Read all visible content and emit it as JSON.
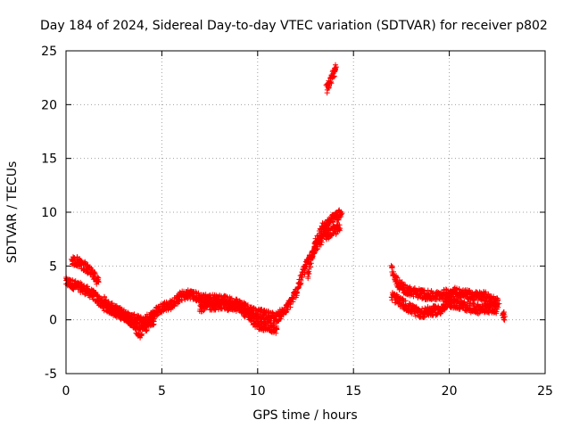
{
  "chart_data": {
    "type": "scatter",
    "title": "Day 184 of 2024, Sidereal Day-to-day VTEC variation (SDTVAR) for receiver p802",
    "xlabel": "GPS time / hours",
    "ylabel": "SDTVAR / TECUs",
    "xlim": [
      0,
      25
    ],
    "ylim": [
      -5,
      25
    ],
    "xticks": [
      0,
      5,
      10,
      15,
      20,
      25
    ],
    "yticks": [
      -5,
      0,
      5,
      10,
      15,
      20,
      25
    ],
    "xtick_labels": [
      "0",
      "5",
      "10",
      "15",
      "20",
      "25"
    ],
    "ytick_labels": [
      "-5",
      "0",
      "5",
      "10",
      "15",
      "20",
      "25"
    ],
    "grid": true,
    "marker": "+",
    "series": [
      {
        "name": "SDTVAR",
        "color": "#ff0000",
        "bands": [
          {
            "x": [
              0.0,
              0.5,
              1.0,
              1.5,
              2.0,
              2.5,
              3.0,
              3.5,
              4.0,
              4.5,
              5.0,
              5.5,
              6.0,
              6.5,
              7.0,
              7.5,
              8.0,
              8.5,
              9.0,
              9.5,
              10.0,
              10.5,
              11.0,
              11.5,
              12.0,
              12.5,
              13.0,
              13.5,
              14.0,
              14.3
            ],
            "y": [
              3.5,
              3.2,
              2.8,
              2.2,
              1.3,
              0.8,
              0.4,
              0.1,
              -0.2,
              0.4,
              1.2,
              1.4,
              2.2,
              2.4,
              2.0,
              1.9,
              1.9,
              1.7,
              1.5,
              1.0,
              0.6,
              0.4,
              0.2,
              1.0,
              2.5,
              5.0,
              6.8,
              7.8,
              8.3,
              8.5
            ]
          },
          {
            "x": [
              0.3,
              0.6,
              1.0,
              1.4,
              1.7
            ],
            "y": [
              5.6,
              5.4,
              4.9,
              4.2,
              3.5
            ]
          },
          {
            "x": [
              2.0,
              2.5,
              3.0,
              3.5,
              3.8,
              4.2,
              4.6
            ],
            "y": [
              1.8,
              1.0,
              0.5,
              -0.4,
              -1.3,
              -0.6,
              0.1
            ]
          },
          {
            "x": [
              7.0,
              8.0,
              9.0,
              9.5,
              10.0,
              10.5,
              11.0
            ],
            "y": [
              1.2,
              1.4,
              1.2,
              0.5,
              -0.5,
              -0.6,
              -0.9
            ]
          },
          {
            "x": [
              12.6,
              13.0,
              13.4,
              13.8,
              14.2,
              14.4
            ],
            "y": [
              4.0,
              7.0,
              8.6,
              9.2,
              9.7,
              9.9
            ]
          },
          {
            "x": [
              13.6,
              13.8,
              14.0,
              14.1
            ],
            "y": [
              21.5,
              22.3,
              23.0,
              23.5
            ]
          },
          {
            "x": [
              17.0,
              17.3,
              17.8,
              18.3,
              18.8,
              19.3,
              19.8,
              20.3,
              20.8,
              21.3,
              21.8,
              22.3,
              22.6
            ],
            "y": [
              4.7,
              3.4,
              2.7,
              2.5,
              2.3,
              2.2,
              2.4,
              2.6,
              2.4,
              2.2,
              2.2,
              1.8,
              1.5
            ]
          },
          {
            "x": [
              17.0,
              17.5,
              18.0,
              18.5,
              19.0,
              19.5,
              20.0,
              20.5,
              21.0,
              21.5,
              22.0,
              22.5
            ],
            "y": [
              2.2,
              1.6,
              1.0,
              0.6,
              0.8,
              0.9,
              1.6,
              1.4,
              1.2,
              1.0,
              1.1,
              1.0
            ]
          },
          {
            "x": [
              22.8,
              22.9
            ],
            "y": [
              0.6,
              0.3
            ]
          }
        ]
      }
    ]
  }
}
